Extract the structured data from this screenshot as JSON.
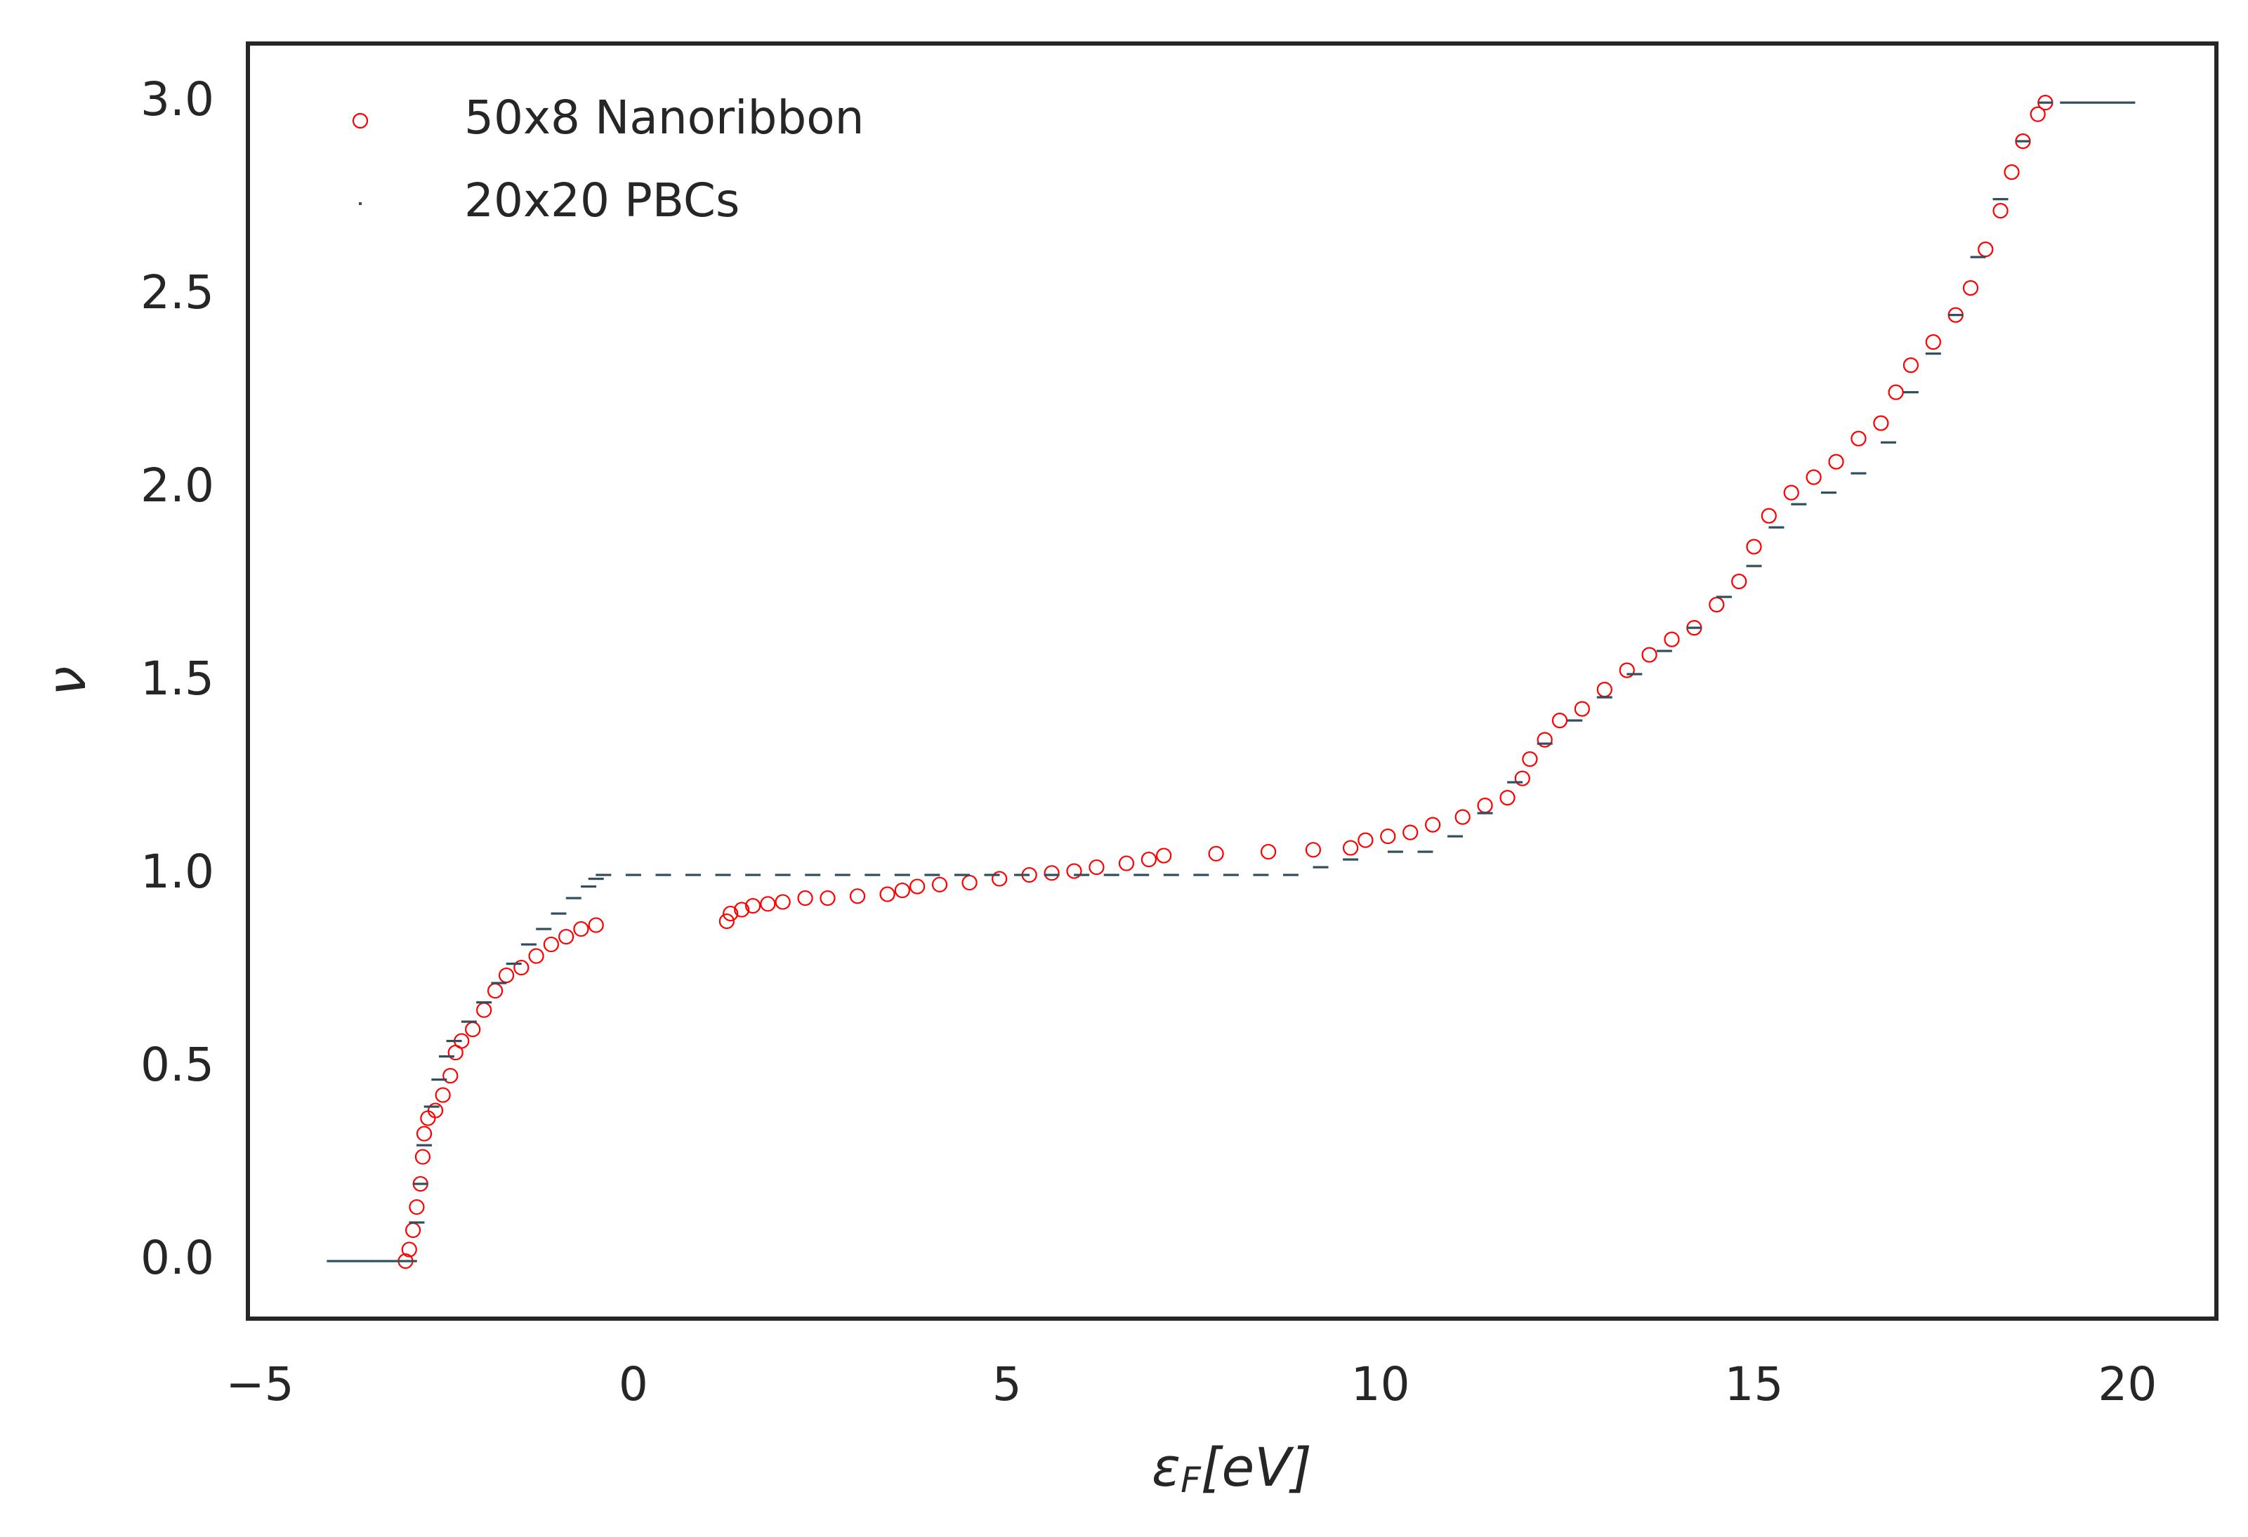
{
  "chart_data": {
    "type": "scatter",
    "xlabel": [
      "ε",
      "F",
      "[eV]"
    ],
    "ylabel": "ν",
    "xlim": [
      -5.16,
      21.19
    ],
    "ylim": [
      -0.149,
      3.153
    ],
    "xticks": [
      {
        "value": -5,
        "label": "−5"
      },
      0,
      5,
      10,
      15,
      20
    ],
    "yticks": [
      {
        "value": 0,
        "label": "0.0"
      },
      0.5,
      {
        "value": 1,
        "label": "1.0"
      },
      1.5,
      {
        "value": 2,
        "label": "2.0"
      },
      2.5,
      {
        "value": 3,
        "label": "3.0"
      }
    ],
    "grid": false,
    "legend": "upper left",
    "series": [
      {
        "name": "50x8 Nanoribbon",
        "color": "#ff0000",
        "marker": "hollow-circle",
        "x": [
          -3.05,
          -3.0,
          -2.95,
          -2.9,
          -2.85,
          -2.82,
          -2.8,
          -2.75,
          -2.65,
          -2.55,
          -2.45,
          -2.38,
          -2.3,
          -2.15,
          -2.0,
          -1.85,
          -1.7,
          -1.5,
          -1.3,
          -1.1,
          -0.9,
          -0.7,
          -0.5,
          1.25,
          1.3,
          1.45,
          1.6,
          1.8,
          2.0,
          2.3,
          2.6,
          3.0,
          3.4,
          3.6,
          3.8,
          4.1,
          4.5,
          4.9,
          5.3,
          5.6,
          5.9,
          6.2,
          6.6,
          6.9,
          7.1,
          7.8,
          8.5,
          9.1,
          9.6,
          9.8,
          10.1,
          10.4,
          10.7,
          11.1,
          11.4,
          11.7,
          11.9,
          12.0,
          12.2,
          12.4,
          12.7,
          13.0,
          13.3,
          13.6,
          13.9,
          14.2,
          14.5,
          14.8,
          15.0,
          15.2,
          15.5,
          15.8,
          16.1,
          16.4,
          16.7,
          16.9,
          17.1,
          17.4,
          17.7,
          17.9,
          18.1,
          18.3,
          18.45,
          18.6,
          18.8,
          18.9
        ],
        "values": [
          0.0,
          0.03,
          0.08,
          0.14,
          0.2,
          0.27,
          0.33,
          0.37,
          0.39,
          0.43,
          0.48,
          0.54,
          0.57,
          0.6,
          0.65,
          0.7,
          0.74,
          0.76,
          0.79,
          0.82,
          0.84,
          0.86,
          0.87,
          0.88,
          0.9,
          0.91,
          0.92,
          0.925,
          0.93,
          0.94,
          0.94,
          0.945,
          0.95,
          0.96,
          0.97,
          0.975,
          0.98,
          0.99,
          1.0,
          1.005,
          1.01,
          1.02,
          1.03,
          1.04,
          1.05,
          1.055,
          1.06,
          1.065,
          1.07,
          1.09,
          1.1,
          1.11,
          1.13,
          1.15,
          1.18,
          1.2,
          1.25,
          1.3,
          1.35,
          1.4,
          1.43,
          1.48,
          1.53,
          1.57,
          1.61,
          1.64,
          1.7,
          1.76,
          1.85,
          1.93,
          1.99,
          2.03,
          2.07,
          2.13,
          2.17,
          2.25,
          2.32,
          2.38,
          2.45,
          2.52,
          2.62,
          2.72,
          2.82,
          2.9,
          2.97,
          3.0
        ]
      },
      {
        "name": "20x20 PBCs",
        "color": "#2f4f5f",
        "marker": "dot",
        "x": [
          -4.0,
          -3.8,
          -3.6,
          -3.4,
          -3.2,
          -3.0,
          -2.9,
          -2.85,
          -2.8,
          -2.7,
          -2.6,
          -2.5,
          -2.4,
          -2.2,
          -2.0,
          -1.8,
          -1.6,
          -1.4,
          -1.2,
          -1.0,
          -0.8,
          -0.6,
          -0.5,
          -0.4,
          0.0,
          0.4,
          0.8,
          1.2,
          1.6,
          2.0,
          2.4,
          2.8,
          3.2,
          3.6,
          4.0,
          4.4,
          4.8,
          5.2,
          5.6,
          6.0,
          6.4,
          6.8,
          7.2,
          7.6,
          8.0,
          8.4,
          8.8,
          9.2,
          9.6,
          10.2,
          10.6,
          11.0,
          11.4,
          11.8,
          12.2,
          12.6,
          13.0,
          13.4,
          13.8,
          14.2,
          14.6,
          15.0,
          15.3,
          15.6,
          16.0,
          16.4,
          16.8,
          17.1,
          17.4,
          17.7,
          18.0,
          18.3,
          18.6,
          18.9,
          19.2,
          19.4,
          19.6,
          19.8,
          20.0
        ],
        "values": [
          0,
          0,
          0,
          0,
          0,
          0,
          0.1,
          0.2,
          0.3,
          0.4,
          0.47,
          0.53,
          0.57,
          0.62,
          0.67,
          0.72,
          0.77,
          0.82,
          0.86,
          0.9,
          0.94,
          0.97,
          0.99,
          1,
          1,
          1,
          1,
          1,
          1,
          1,
          1,
          1,
          1,
          1,
          1,
          1,
          1,
          1,
          1,
          1,
          1,
          1,
          1,
          1,
          1,
          1,
          1,
          1.02,
          1.04,
          1.06,
          1.06,
          1.1,
          1.16,
          1.24,
          1.34,
          1.4,
          1.46,
          1.52,
          1.58,
          1.64,
          1.72,
          1.8,
          1.9,
          1.96,
          1.99,
          2.04,
          2.12,
          2.25,
          2.35,
          2.45,
          2.6,
          2.75,
          2.9,
          3.0,
          3,
          3,
          3,
          3,
          3
        ]
      }
    ]
  }
}
